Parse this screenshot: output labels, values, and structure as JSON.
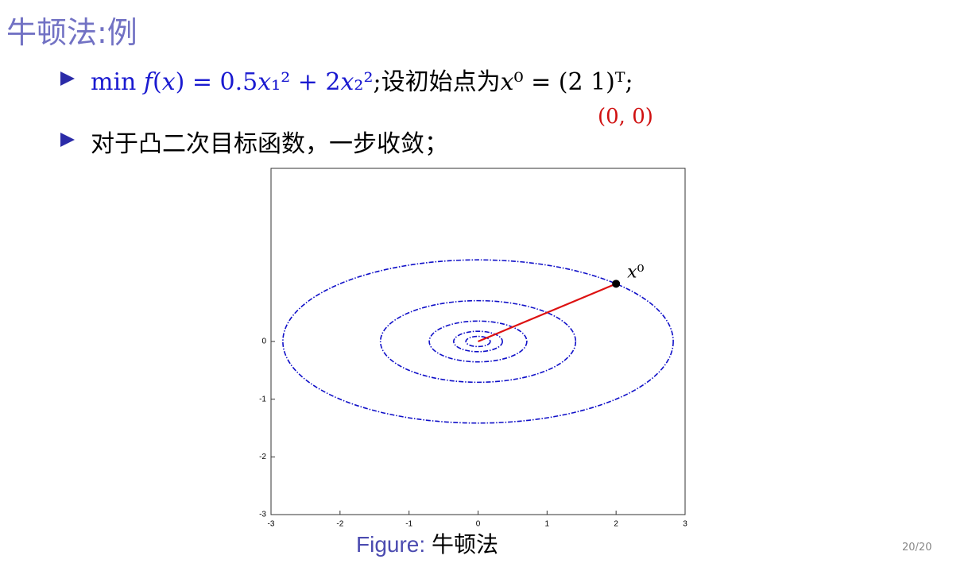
{
  "header": {
    "title": "牛顿法:例"
  },
  "bullets": [
    {
      "formula": "min 𝑓(𝑥) = 0.5𝑥₁² + 2𝑥₂²",
      "text": ";设初始点为𝑥⁰ = (2 1)ᵀ;"
    },
    {
      "text": "对于凸二次目标函数，一步收敛；"
    }
  ],
  "annotation": "(0, 0)",
  "figure": {
    "caption_label": "Figure:",
    "caption": "牛顿法"
  },
  "page_number": "20/20",
  "chart_data": {
    "type": "contour",
    "xlim": [
      -3,
      3
    ],
    "ylim": [
      -3,
      3
    ],
    "xticks": [
      -3,
      -2,
      -1,
      0,
      1,
      2,
      3
    ],
    "yticks": [
      -3,
      -2,
      -1,
      0
    ],
    "levels": [
      4,
      1,
      0.25,
      0.0625,
      0.015625
    ],
    "contour_color": "#1010c8",
    "path": {
      "x": [
        2,
        0
      ],
      "y": [
        1,
        0
      ],
      "color": "#dd1111"
    },
    "point_label": "𝑥⁰"
  }
}
